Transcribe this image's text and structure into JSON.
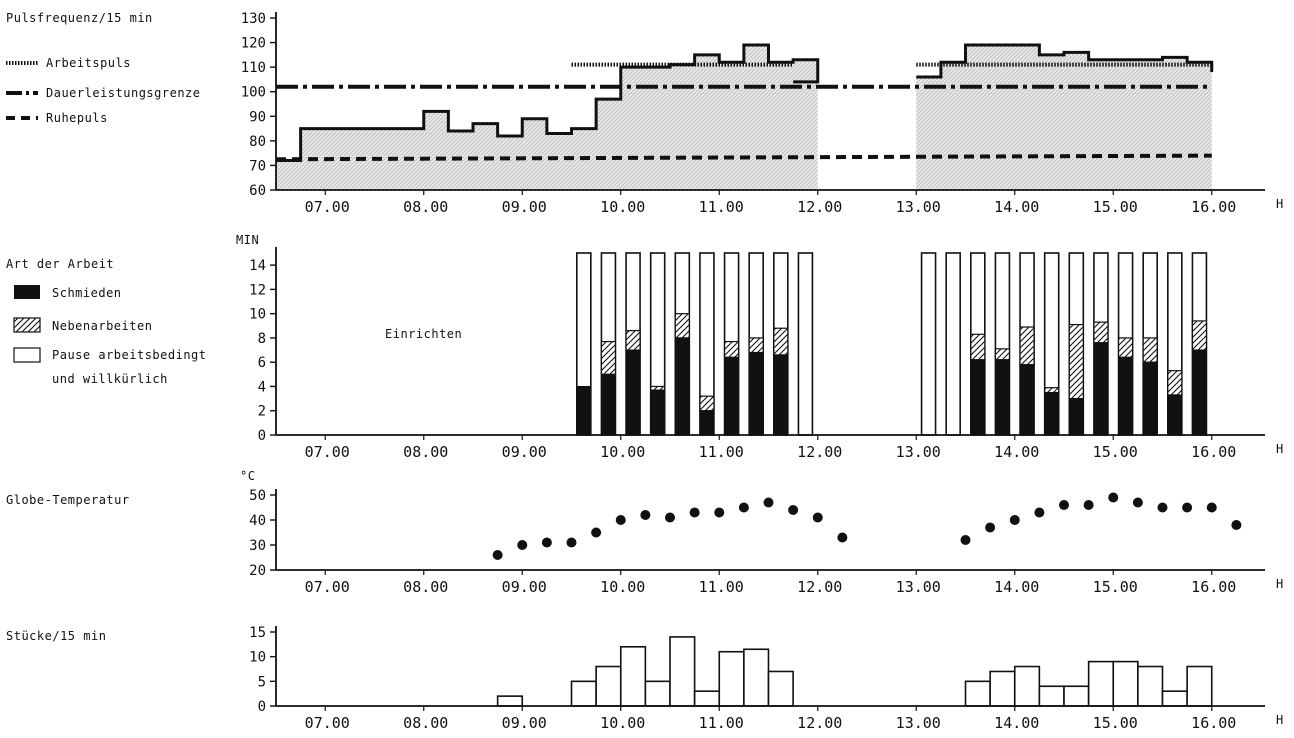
{
  "chart_data": [
    {
      "type": "line",
      "title": "Pulsfrequenz/15 min",
      "x_unit": "h",
      "x_ticks": [
        "07.00",
        "08.00",
        "09.00",
        "10.00",
        "11.00",
        "12.00",
        "13.00",
        "14.00",
        "15.00",
        "16.00"
      ],
      "ylim": [
        60,
        130
      ],
      "y_ticks": [
        60,
        70,
        80,
        90,
        100,
        110,
        120,
        130
      ],
      "legend": [
        "Arbeitspuls",
        "Dauerleistungsgrenze",
        "Ruhepuls"
      ],
      "series": [
        {
          "name": "Pulsfrequenz",
          "x": [
            6.5,
            6.75,
            7.75,
            8.0,
            8.25,
            8.5,
            8.75,
            9.0,
            9.25,
            9.5,
            9.75,
            10.0,
            10.25,
            10.5,
            10.75,
            11.0,
            11.25,
            11.5,
            11.75,
            12.0
          ],
          "values": [
            72,
            85,
            85,
            92,
            84,
            87,
            82,
            89,
            83,
            85,
            97,
            110,
            110,
            111,
            115,
            112,
            119,
            112,
            113,
            104
          ]
        },
        {
          "name": "Pulsfrequenz_pm",
          "x": [
            13.0,
            13.25,
            13.5,
            13.75,
            14.0,
            14.25,
            14.5,
            14.75,
            15.0,
            15.25,
            15.5,
            15.75,
            16.0
          ],
          "values": [
            106,
            112,
            119,
            119,
            119,
            115,
            116,
            113,
            113,
            113,
            114,
            112,
            108
          ]
        },
        {
          "name": "Arbeitspuls",
          "segments": [
            [
              9.5,
              11.75,
              111
            ],
            [
              13.0,
              16.0,
              111
            ]
          ]
        },
        {
          "name": "Dauerleistungsgrenze",
          "segments": [
            [
              6.5,
              16.0,
              102
            ]
          ]
        },
        {
          "name": "Ruhepuls",
          "segments": [
            [
              6.5,
              16.0,
              72.5,
              74
            ]
          ]
        }
      ],
      "shaded_work_ranges": [
        [
          6.5,
          12.0
        ],
        [
          13.0,
          16.0
        ]
      ]
    },
    {
      "type": "bar",
      "title": "Art der Arbeit",
      "ylabel": "min",
      "ylim": [
        0,
        15
      ],
      "y_ticks": [
        0,
        2,
        4,
        6,
        8,
        10,
        12,
        14
      ],
      "annotation": "Einrichten",
      "legend": [
        "Schmieden",
        "Nebenarbeiten",
        "Pause arbeitsbedingt",
        "und willkürlich"
      ],
      "x": [
        9.625,
        9.875,
        10.125,
        10.375,
        10.625,
        10.875,
        11.125,
        11.375,
        11.625,
        11.875,
        13.125,
        13.375,
        13.625,
        13.875,
        14.125,
        14.375,
        14.625,
        14.875,
        15.125,
        15.375,
        15.625,
        15.875
      ],
      "series": [
        {
          "name": "Schmieden",
          "values": [
            4,
            5,
            7,
            3.7,
            8,
            2,
            6.4,
            6.8,
            6.6,
            0,
            0,
            0,
            6.2,
            6.2,
            5.8,
            3.5,
            3,
            7.6,
            6.4,
            6,
            3.3,
            7
          ]
        },
        {
          "name": "Nebenarbeiten",
          "values": [
            0,
            2.7,
            1.6,
            0.3,
            2,
            1.2,
            1.3,
            1.2,
            2.2,
            0,
            0,
            0,
            2.1,
            0.9,
            3.1,
            0.4,
            6.1,
            1.7,
            1.6,
            2,
            2,
            2.4
          ]
        },
        {
          "name": "Pause",
          "values": [
            11,
            7.3,
            6.4,
            11,
            5,
            11.8,
            7.3,
            7,
            6.2,
            15,
            15,
            15,
            6.7,
            7.9,
            6.1,
            11.1,
            5.9,
            5.7,
            7,
            7,
            9.7,
            5.6
          ]
        }
      ]
    },
    {
      "type": "scatter",
      "title": "Globe-Temperatur",
      "ylabel": "°C",
      "ylim": [
        20,
        50
      ],
      "y_ticks": [
        20,
        30,
        40,
        50
      ],
      "x": [
        8.75,
        9.0,
        9.25,
        9.5,
        9.75,
        10.0,
        10.25,
        10.5,
        10.75,
        11.0,
        11.25,
        11.5,
        11.75,
        12.0,
        12.25,
        13.5,
        13.75,
        14.0,
        14.25,
        14.5,
        14.75,
        15.0,
        15.25,
        15.5,
        15.75,
        16.0,
        16.25
      ],
      "values": [
        26,
        30,
        31,
        31,
        35,
        40,
        42,
        41,
        43,
        43,
        45,
        47,
        44,
        41,
        33,
        32,
        37,
        40,
        43,
        46,
        46,
        49,
        47,
        45,
        45,
        45,
        38
      ]
    },
    {
      "type": "bar",
      "title": "Stücke/15 min",
      "ylim": [
        0,
        15
      ],
      "y_ticks": [
        0,
        5,
        10,
        15
      ],
      "x": [
        8.875,
        9.625,
        9.875,
        10.125,
        10.375,
        10.625,
        10.875,
        11.125,
        11.375,
        11.625,
        13.625,
        13.875,
        14.125,
        14.375,
        14.625,
        14.875,
        15.125,
        15.375,
        15.625,
        15.875
      ],
      "values": [
        2,
        5,
        8,
        12,
        5,
        14,
        3,
        11,
        11.5,
        7,
        5,
        7,
        8,
        4,
        4,
        9,
        9,
        8,
        3,
        8
      ]
    }
  ]
}
